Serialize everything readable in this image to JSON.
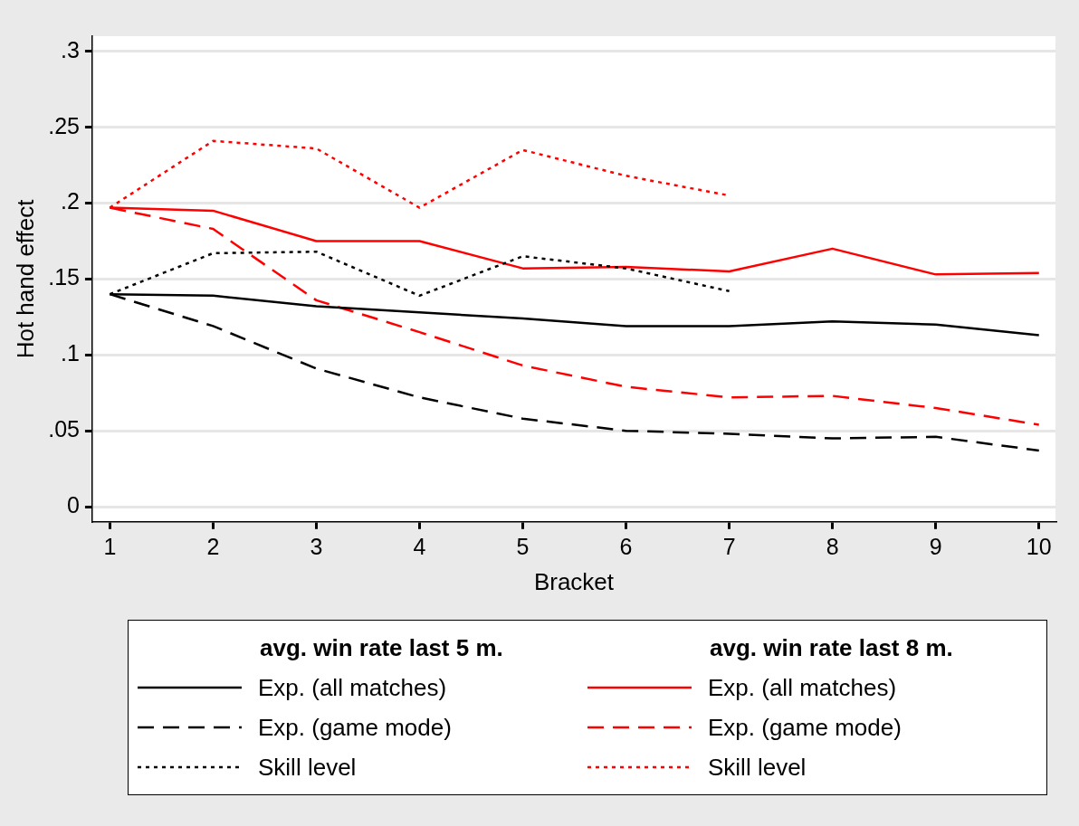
{
  "chart_data": {
    "type": "line",
    "xlabel": "Bracket",
    "ylabel": "Hot hand effect",
    "x": [
      1,
      2,
      3,
      4,
      5,
      6,
      7,
      8,
      9,
      10
    ],
    "xlim": [
      0.83,
      10.16
    ],
    "xticks": [
      1,
      2,
      3,
      4,
      5,
      6,
      7,
      8,
      9,
      10
    ],
    "ylim": [
      -0.01,
      0.31
    ],
    "yticks": [
      {
        "value": 0,
        "label": "0"
      },
      {
        "value": 0.05,
        "label": ".05"
      },
      {
        "value": 0.1,
        "label": ".1"
      },
      {
        "value": 0.15,
        "label": ".15"
      },
      {
        "value": 0.2,
        "label": ".2"
      },
      {
        "value": 0.25,
        "label": ".25"
      },
      {
        "value": 0.3,
        "label": ".3"
      }
    ],
    "grid": "y",
    "legend": "bottom",
    "marker": "none",
    "annotations": [
      "avg. win rate last 5 m.",
      "avg. win rate last 8 m."
    ],
    "series": [
      {
        "name": "Exp. (all matches)",
        "color": "#000000",
        "line_style": "solid",
        "values": [
          0.14,
          0.139,
          0.132,
          0.128,
          0.124,
          0.119,
          0.119,
          0.122,
          0.12,
          0.113
        ]
      },
      {
        "name": "Exp. (game mode)",
        "color": "#000000",
        "line_style": "dashed",
        "values": [
          0.14,
          0.119,
          0.091,
          0.072,
          0.058,
          0.05,
          0.048,
          0.045,
          0.046,
          0.037
        ]
      },
      {
        "name": "Skill level",
        "color": "#000000",
        "line_style": "dotted",
        "values": [
          0.14,
          0.167,
          0.168,
          0.139,
          0.165,
          0.157,
          0.142,
          null,
          null,
          null
        ]
      },
      {
        "name": "Exp. (all matches)",
        "color": "#ff0000",
        "line_style": "solid",
        "values": [
          0.197,
          0.195,
          0.175,
          0.175,
          0.157,
          0.158,
          0.155,
          0.17,
          0.153,
          0.154
        ]
      },
      {
        "name": "Exp. (game mode)",
        "color": "#ff0000",
        "line_style": "dashed",
        "values": [
          0.197,
          0.183,
          0.136,
          0.115,
          0.093,
          0.079,
          0.072,
          0.073,
          0.065,
          0.054
        ]
      },
      {
        "name": "Skill level",
        "color": "#ff0000",
        "line_style": "dotted",
        "values": [
          0.197,
          0.241,
          0.236,
          0.197,
          0.235,
          0.218,
          0.205,
          null,
          null,
          null
        ]
      }
    ]
  }
}
